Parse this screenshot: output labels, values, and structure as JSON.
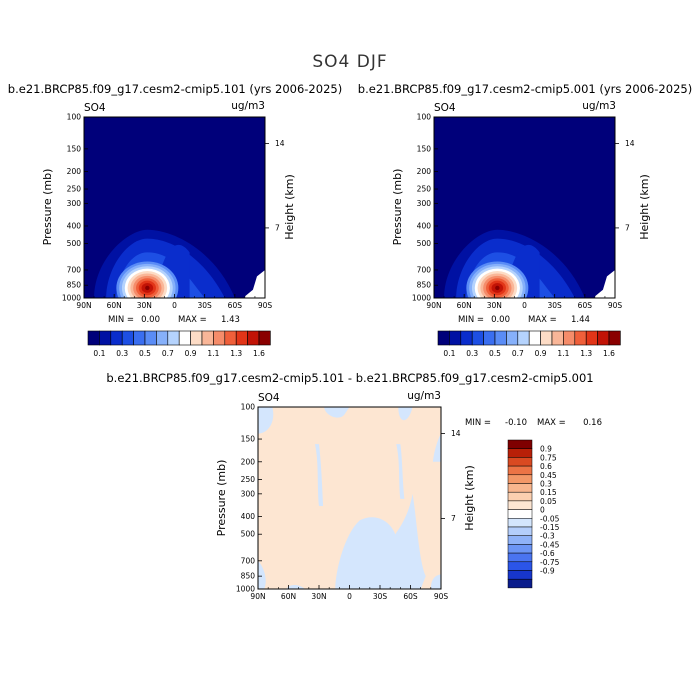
{
  "figure": {
    "title": "SO4 DJF"
  },
  "colors": {
    "bg": "#ffffff",
    "frame": "#000000",
    "abs_levels": [
      "#00007a",
      "#0011a3",
      "#0a2dcc",
      "#1d4fe4",
      "#3a6ef0",
      "#5a8cf6",
      "#86b0fa",
      "#b5d3fd",
      "#ffffff",
      "#fddcc6",
      "#f9b698",
      "#f58c6a",
      "#ef5f3a",
      "#e23518",
      "#c21306",
      "#8a0000"
    ],
    "diff_levels": [
      "#0a1c8c",
      "#1736cc",
      "#2b55e8",
      "#4a74f0",
      "#6c95f5",
      "#8fb2f8",
      "#b4cefb",
      "#d4e6fd",
      "#ffffff",
      "#fde6d2",
      "#fcd0b0",
      "#f8b68e",
      "#f39868",
      "#ec7446",
      "#d94a22",
      "#b82008",
      "#7f0000"
    ]
  },
  "chart_data": [
    {
      "type": "heatmap",
      "title": "b.e21.BRCP85.f09_g17.cesm2-cmip5.101 (yrs 2006-2025)",
      "variable": "SO4",
      "units": "ug/m3",
      "ylabel": "Pressure (mb)",
      "ylabel_right": "Height (km)",
      "x_ticks": [
        "90N",
        "60N",
        "30N",
        "0",
        "30S",
        "60S",
        "90S"
      ],
      "y_ticks": [
        100,
        150,
        200,
        250,
        300,
        400,
        500,
        700,
        850,
        1000
      ],
      "height_ticks": [
        {
          "label": "14",
          "pressure": 140
        },
        {
          "label": "7",
          "pressure": 410
        }
      ],
      "min_label": "MIN =",
      "min_value": "0.00",
      "max_label": "MAX =",
      "max_value": "1.43",
      "colorbar": {
        "labels": [
          "0.1",
          "0.3",
          "0.5",
          "0.7",
          "0.9",
          "1.1",
          "1.3",
          "1.6"
        ],
        "levels": [
          0.1,
          0.2,
          0.3,
          0.4,
          0.5,
          0.6,
          0.7,
          0.8,
          0.9,
          1.0,
          1.1,
          1.2,
          1.3,
          1.4,
          1.6
        ]
      },
      "peak": {
        "lat": 27,
        "pressure": 880,
        "value": 1.43
      }
    },
    {
      "type": "heatmap",
      "title": "b.e21.BRCP85.f09_g17.cesm2-cmip5.001 (yrs 2006-2025)",
      "variable": "SO4",
      "units": "ug/m3",
      "ylabel": "Pressure (mb)",
      "ylabel_right": "Height (km)",
      "x_ticks": [
        "90N",
        "60N",
        "30N",
        "0",
        "30S",
        "60S",
        "90S"
      ],
      "y_ticks": [
        100,
        150,
        200,
        250,
        300,
        400,
        500,
        700,
        850,
        1000
      ],
      "height_ticks": [
        {
          "label": "14",
          "pressure": 140
        },
        {
          "label": "7",
          "pressure": 410
        }
      ],
      "min_label": "MIN =",
      "min_value": "0.00",
      "max_label": "MAX =",
      "max_value": "1.44",
      "colorbar": {
        "labels": [
          "0.1",
          "0.3",
          "0.5",
          "0.7",
          "0.9",
          "1.1",
          "1.3",
          "1.6"
        ],
        "levels": [
          0.1,
          0.2,
          0.3,
          0.4,
          0.5,
          0.6,
          0.7,
          0.8,
          0.9,
          1.0,
          1.1,
          1.2,
          1.3,
          1.4,
          1.6
        ]
      },
      "peak": {
        "lat": 27,
        "pressure": 880,
        "value": 1.44
      }
    },
    {
      "type": "heatmap",
      "title": "b.e21.BRCP85.f09_g17.cesm2-cmip5.101 - b.e21.BRCP85.f09_g17.cesm2-cmip5.001",
      "variable": "SO4",
      "units": "ug/m3",
      "ylabel": "Pressure (mb)",
      "ylabel_right": "Height (km)",
      "x_ticks": [
        "90N",
        "60N",
        "30N",
        "0",
        "30S",
        "60S",
        "90S"
      ],
      "y_ticks": [
        100,
        150,
        200,
        250,
        300,
        400,
        500,
        700,
        850,
        1000
      ],
      "height_ticks": [
        {
          "label": "14",
          "pressure": 140
        },
        {
          "label": "7",
          "pressure": 410
        }
      ],
      "min_label": "MIN =",
      "min_value": "-0.10",
      "max_label": "MAX =",
      "max_value": "0.16",
      "colorbar": {
        "labels": [
          "0.9",
          "0.75",
          "0.6",
          "0.45",
          "0.3",
          "0.15",
          "0.05",
          "0",
          "-0.05",
          "-0.15",
          "-0.3",
          "-0.45",
          "-0.6",
          "-0.75",
          "-0.9"
        ]
      },
      "dominant_sign": "positive",
      "negative_regions_lat": [
        "90N-85N near surface",
        "15N-45S lower troposphere",
        "45S-65S upper troposphere",
        "90S upper troposphere"
      ]
    }
  ]
}
